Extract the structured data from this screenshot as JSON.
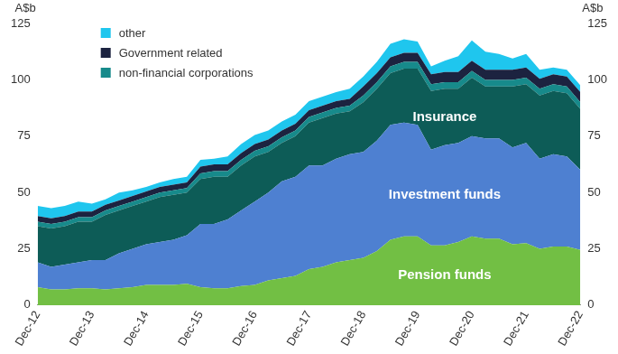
{
  "chart_data": {
    "type": "area",
    "y_label": "A$b",
    "categories": [
      "Dec-12",
      null,
      null,
      null,
      "Dec-13",
      null,
      null,
      null,
      "Dec-14",
      null,
      null,
      null,
      "Dec-15",
      null,
      null,
      null,
      "Dec-16",
      null,
      null,
      null,
      "Dec-17",
      null,
      null,
      null,
      "Dec-18",
      null,
      null,
      null,
      "Dec-19",
      null,
      null,
      null,
      "Dec-20",
      null,
      null,
      null,
      "Dec-21",
      null,
      null,
      null,
      "Dec-22"
    ],
    "series": [
      {
        "name": "Pension funds",
        "color": "#72bf44",
        "values": [
          8,
          7,
          7,
          7.5,
          7.5,
          7,
          7.5,
          8,
          9,
          9,
          9,
          9.5,
          8,
          7.5,
          7.5,
          8.5,
          9,
          11,
          12,
          13,
          16,
          17,
          19,
          20,
          21,
          24,
          29,
          30.5,
          30.5,
          26.5,
          26.5,
          28,
          30.5,
          29.5,
          29.5,
          27,
          27.5,
          25,
          26,
          26,
          24.5
        ]
      },
      {
        "name": "Investment funds",
        "color": "#4e80d1",
        "values": [
          11,
          10,
          11,
          11.5,
          12.5,
          13,
          15.5,
          17,
          18,
          19,
          20,
          21.5,
          28,
          28.5,
          30.5,
          33.5,
          37,
          39,
          43,
          44,
          46,
          45,
          46,
          47,
          47,
          49,
          51,
          50.5,
          49.5,
          42.5,
          44.5,
          44,
          44.5,
          44.5,
          44.5,
          43,
          44.5,
          40,
          41,
          40,
          35.5
        ]
      },
      {
        "name": "Insurance",
        "color": "#0d5c57",
        "values": [
          16,
          17,
          17,
          18,
          17,
          20,
          19,
          19,
          19,
          20,
          20,
          19,
          20,
          21,
          19,
          20,
          20,
          18,
          17,
          18,
          19,
          21,
          20,
          19,
          22,
          23,
          23,
          24,
          25,
          26,
          25,
          24,
          26,
          23,
          23,
          27,
          26,
          28,
          28,
          28,
          27
        ]
      },
      {
        "name": "non-financial corporations",
        "color": "#178a8b",
        "values": [
          2,
          2,
          2,
          2,
          2,
          2,
          2,
          2,
          2,
          2,
          2,
          2,
          2.5,
          2.5,
          2.5,
          2.5,
          2.5,
          2.5,
          2.5,
          2.5,
          2.5,
          2.5,
          2.5,
          2.5,
          3,
          3,
          3,
          3,
          3,
          3,
          3,
          3,
          3,
          3,
          3,
          3,
          3,
          3,
          3,
          3,
          3
        ]
      },
      {
        "name": "Government related",
        "color": "#1c2340",
        "values": [
          2.5,
          2.5,
          2.5,
          2.5,
          2.5,
          2.5,
          2.5,
          2.5,
          2.5,
          2.5,
          2.5,
          2.5,
          3,
          3,
          3,
          3,
          3,
          3,
          3,
          3,
          3,
          3,
          3,
          3,
          4,
          4,
          4,
          4,
          4,
          4.5,
          4.5,
          4.5,
          4.5,
          4.5,
          4.5,
          4.5,
          4.5,
          4.5,
          4.5,
          4.5,
          4.5
        ]
      },
      {
        "name": "other",
        "color": "#1fc6ee",
        "values": [
          4.5,
          4.5,
          4.5,
          4.5,
          3.5,
          2.5,
          3.5,
          2.5,
          2,
          2,
          2.5,
          2.5,
          3,
          2.5,
          3.5,
          4,
          4,
          4,
          4,
          4,
          4,
          4,
          4,
          4.5,
          4.5,
          5,
          6,
          6,
          5,
          3.5,
          5,
          7,
          9,
          8,
          7,
          5,
          6,
          4,
          3,
          3,
          3
        ]
      }
    ],
    "annotations": [
      "Insurance",
      "Investment funds",
      "Pension funds"
    ],
    "ylim": [
      0,
      125
    ],
    "yticks": [
      0,
      25,
      50,
      75,
      100,
      125
    ],
    "stacked": true,
    "grid": false,
    "legend": "upper left"
  }
}
